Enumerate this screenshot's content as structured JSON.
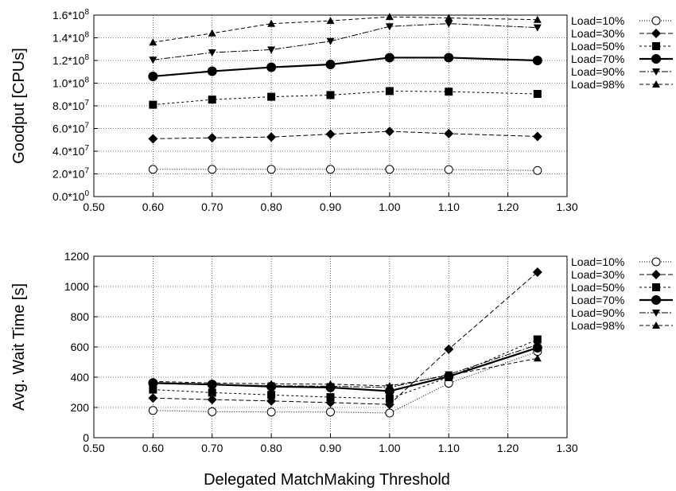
{
  "xlabel": "Delegated MatchMaking Threshold",
  "legend": [
    "Load=10%",
    "Load=30%",
    "Load=50%",
    "Load=70%",
    "Load=90%",
    "Load=98%"
  ],
  "series_styles": [
    {
      "marker": "circle-open",
      "dash": "1,2",
      "width": 1
    },
    {
      "marker": "diamond",
      "dash": "6,3",
      "width": 1
    },
    {
      "marker": "square",
      "dash": "3,3",
      "width": 1
    },
    {
      "marker": "circle",
      "dash": "",
      "width": 2.2
    },
    {
      "marker": "triangle-down",
      "dash": "8,2,2,2",
      "width": 1
    },
    {
      "marker": "triangle-up",
      "dash": "5,3",
      "width": 1
    }
  ],
  "chart_data": [
    {
      "type": "line",
      "ylabel": "Goodput [CPUs]",
      "xlim": [
        0.5,
        1.3
      ],
      "ylim": [
        0,
        160000000
      ],
      "xticks": [
        "0.50",
        "0.60",
        "0.70",
        "0.80",
        "0.90",
        "1.00",
        "1.10",
        "1.20",
        "1.30"
      ],
      "xtick_values": [
        0.5,
        0.6,
        0.7,
        0.8,
        0.9,
        1.0,
        1.1,
        1.2,
        1.3
      ],
      "yticks": [
        {
          "m": "0.0*10",
          "e": "0"
        },
        {
          "m": "2.0*10",
          "e": "7"
        },
        {
          "m": "4.0*10",
          "e": "7"
        },
        {
          "m": "6.0*10",
          "e": "7"
        },
        {
          "m": "8.0*10",
          "e": "7"
        },
        {
          "m": "1.0*10",
          "e": "8"
        },
        {
          "m": "1.2*10",
          "e": "8"
        },
        {
          "m": "1.4*10",
          "e": "8"
        },
        {
          "m": "1.6*10",
          "e": "8"
        }
      ],
      "ytick_values": [
        0,
        20000000,
        40000000,
        60000000,
        80000000,
        100000000,
        120000000,
        140000000,
        160000000
      ],
      "grid": true,
      "legend_position": "right",
      "x": [
        0.6,
        0.7,
        0.8,
        0.9,
        1.0,
        1.1,
        1.25
      ],
      "series": [
        {
          "name": "Load=10%",
          "values": [
            24000000,
            24000000,
            24000000,
            24000000,
            24000000,
            23800000,
            23000000
          ]
        },
        {
          "name": "Load=30%",
          "values": [
            51000000,
            51800000,
            52500000,
            55000000,
            57500000,
            55500000,
            53000000
          ]
        },
        {
          "name": "Load=50%",
          "values": [
            81000000,
            85500000,
            88000000,
            89500000,
            93000000,
            92500000,
            90500000
          ]
        },
        {
          "name": "Load=70%",
          "values": [
            106000000,
            110500000,
            114000000,
            116500000,
            122500000,
            122500000,
            120000000
          ]
        },
        {
          "name": "Load=90%",
          "values": [
            120500000,
            127000000,
            129500000,
            137000000,
            150000000,
            152500000,
            149000000
          ]
        },
        {
          "name": "Load=98%",
          "values": [
            136000000,
            144000000,
            152500000,
            155000000,
            158500000,
            157500000,
            156000000
          ]
        }
      ]
    },
    {
      "type": "line",
      "ylabel": "Avg. Wait Time [s]",
      "xlim": [
        0.5,
        1.3
      ],
      "ylim": [
        0,
        1200
      ],
      "xticks": [
        "0.50",
        "0.60",
        "0.70",
        "0.80",
        "0.90",
        "1.00",
        "1.10",
        "1.20",
        "1.30"
      ],
      "xtick_values": [
        0.5,
        0.6,
        0.7,
        0.8,
        0.9,
        1.0,
        1.1,
        1.2,
        1.3
      ],
      "yticks": [
        "0",
        "200",
        "400",
        "600",
        "800",
        "1000",
        "1200"
      ],
      "ytick_values": [
        0,
        200,
        400,
        600,
        800,
        1000,
        1200
      ],
      "grid": true,
      "legend_position": "right",
      "x": [
        0.6,
        0.7,
        0.8,
        0.9,
        1.0,
        1.1,
        1.25
      ],
      "series": [
        {
          "name": "Load=10%",
          "values": [
            180,
            172,
            170,
            170,
            163,
            360,
            570
          ]
        },
        {
          "name": "Load=30%",
          "values": [
            262,
            252,
            243,
            232,
            220,
            585,
            1095
          ]
        },
        {
          "name": "Load=50%",
          "values": [
            318,
            298,
            283,
            268,
            258,
            400,
            650
          ]
        },
        {
          "name": "Load=70%",
          "values": [
            362,
            352,
            338,
            332,
            308,
            405,
            595
          ]
        },
        {
          "name": "Load=90%",
          "values": [
            358,
            350,
            344,
            340,
            332,
            418,
            615
          ]
        },
        {
          "name": "Load=98%",
          "values": [
            372,
            362,
            356,
            354,
            342,
            412,
            525
          ]
        }
      ]
    }
  ]
}
